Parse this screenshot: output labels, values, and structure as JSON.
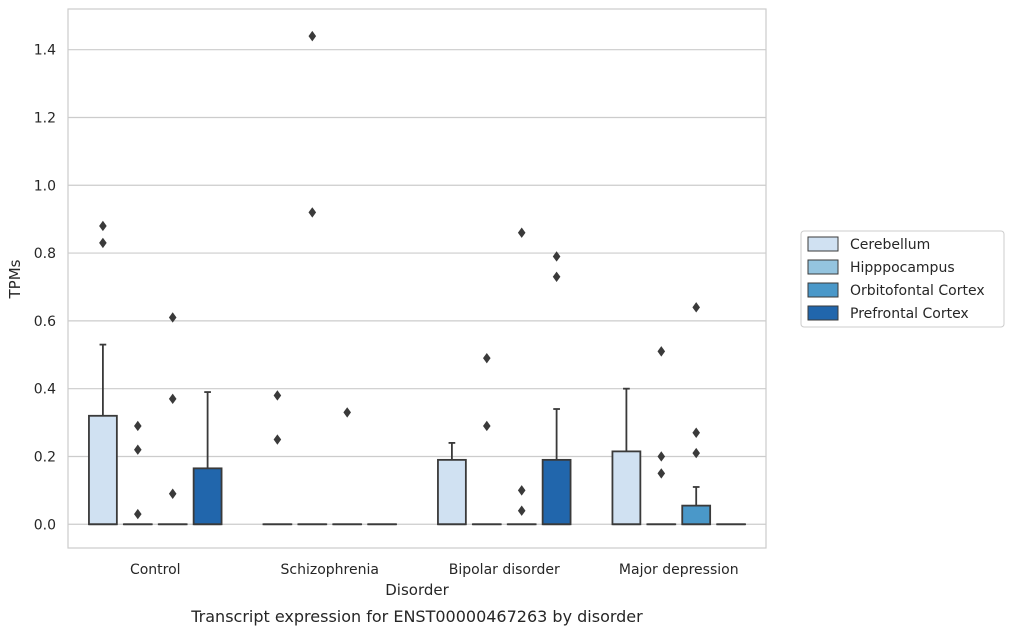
{
  "chart_data": {
    "type": "box",
    "xlabel": "Disorder",
    "ylabel": "TPMs",
    "caption": "Transcript expression for ENST00000467263 by disorder",
    "ylim": [
      -0.07,
      1.52
    ],
    "yticks": [
      0.0,
      0.2,
      0.4,
      0.6,
      0.8,
      1.0,
      1.2,
      1.4
    ],
    "ytick_labels": [
      "0.0",
      "0.2",
      "0.4",
      "0.6",
      "0.8",
      "1.0",
      "1.2",
      "1.4"
    ],
    "grid": true,
    "legend_position": "right",
    "categories": [
      "Control",
      "Schizophrenia",
      "Bipolar disorder",
      "Major depression"
    ],
    "series": [
      {
        "name": "Cerebellum",
        "color": "#d0e1f2",
        "boxes": [
          {
            "q1": 0.0,
            "median": 0.0,
            "q3": 0.32,
            "whisker_low": 0.0,
            "whisker_high": 0.53,
            "outliers": [
              0.83,
              0.88
            ]
          },
          {
            "q1": 0.0,
            "median": 0.0,
            "q3": 0.0,
            "whisker_low": 0.0,
            "whisker_high": 0.0,
            "outliers": [
              0.25,
              0.38
            ]
          },
          {
            "q1": 0.0,
            "median": 0.0,
            "q3": 0.19,
            "whisker_low": 0.0,
            "whisker_high": 0.24,
            "outliers": []
          },
          {
            "q1": 0.0,
            "median": 0.0,
            "q3": 0.215,
            "whisker_low": 0.0,
            "whisker_high": 0.4,
            "outliers": []
          }
        ]
      },
      {
        "name": "Hipppocampus",
        "color": "#94c4df",
        "boxes": [
          {
            "q1": 0.0,
            "median": 0.0,
            "q3": 0.0,
            "whisker_low": 0.0,
            "whisker_high": 0.0,
            "outliers": [
              0.03,
              0.22,
              0.29
            ]
          },
          {
            "q1": 0.0,
            "median": 0.0,
            "q3": 0.0,
            "whisker_low": 0.0,
            "whisker_high": 0.0,
            "outliers": [
              0.92,
              1.44
            ]
          },
          {
            "q1": 0.0,
            "median": 0.0,
            "q3": 0.0,
            "whisker_low": 0.0,
            "whisker_high": 0.0,
            "outliers": [
              0.29,
              0.49
            ]
          },
          {
            "q1": 0.0,
            "median": 0.0,
            "q3": 0.0,
            "whisker_low": 0.0,
            "whisker_high": 0.0,
            "outliers": [
              0.15,
              0.2,
              0.51
            ]
          }
        ]
      },
      {
        "name": "Orbitofontal Cortex",
        "color": "#4a98c9",
        "boxes": [
          {
            "q1": 0.0,
            "median": 0.0,
            "q3": 0.0,
            "whisker_low": 0.0,
            "whisker_high": 0.0,
            "outliers": [
              0.09,
              0.37,
              0.61
            ]
          },
          {
            "q1": 0.0,
            "median": 0.0,
            "q3": 0.0,
            "whisker_low": 0.0,
            "whisker_high": 0.0,
            "outliers": [
              0.33
            ]
          },
          {
            "q1": 0.0,
            "median": 0.0,
            "q3": 0.0,
            "whisker_low": 0.0,
            "whisker_high": 0.0,
            "outliers": [
              0.04,
              0.1,
              0.86
            ]
          },
          {
            "q1": 0.0,
            "median": 0.0,
            "q3": 0.055,
            "whisker_low": 0.0,
            "whisker_high": 0.11,
            "outliers": [
              0.21,
              0.27,
              0.64
            ]
          }
        ]
      },
      {
        "name": "Prefrontal Cortex",
        "color": "#2166ac",
        "boxes": [
          {
            "q1": 0.0,
            "median": 0.0,
            "q3": 0.165,
            "whisker_low": 0.0,
            "whisker_high": 0.39,
            "outliers": []
          },
          {
            "q1": 0.0,
            "median": 0.0,
            "q3": 0.0,
            "whisker_low": 0.0,
            "whisker_high": 0.0,
            "outliers": []
          },
          {
            "q1": 0.0,
            "median": 0.0,
            "q3": 0.19,
            "whisker_low": 0.0,
            "whisker_high": 0.34,
            "outliers": [
              0.73,
              0.79
            ]
          },
          {
            "q1": 0.0,
            "median": 0.0,
            "q3": 0.0,
            "whisker_low": 0.0,
            "whisker_high": 0.0,
            "outliers": []
          }
        ]
      }
    ]
  }
}
